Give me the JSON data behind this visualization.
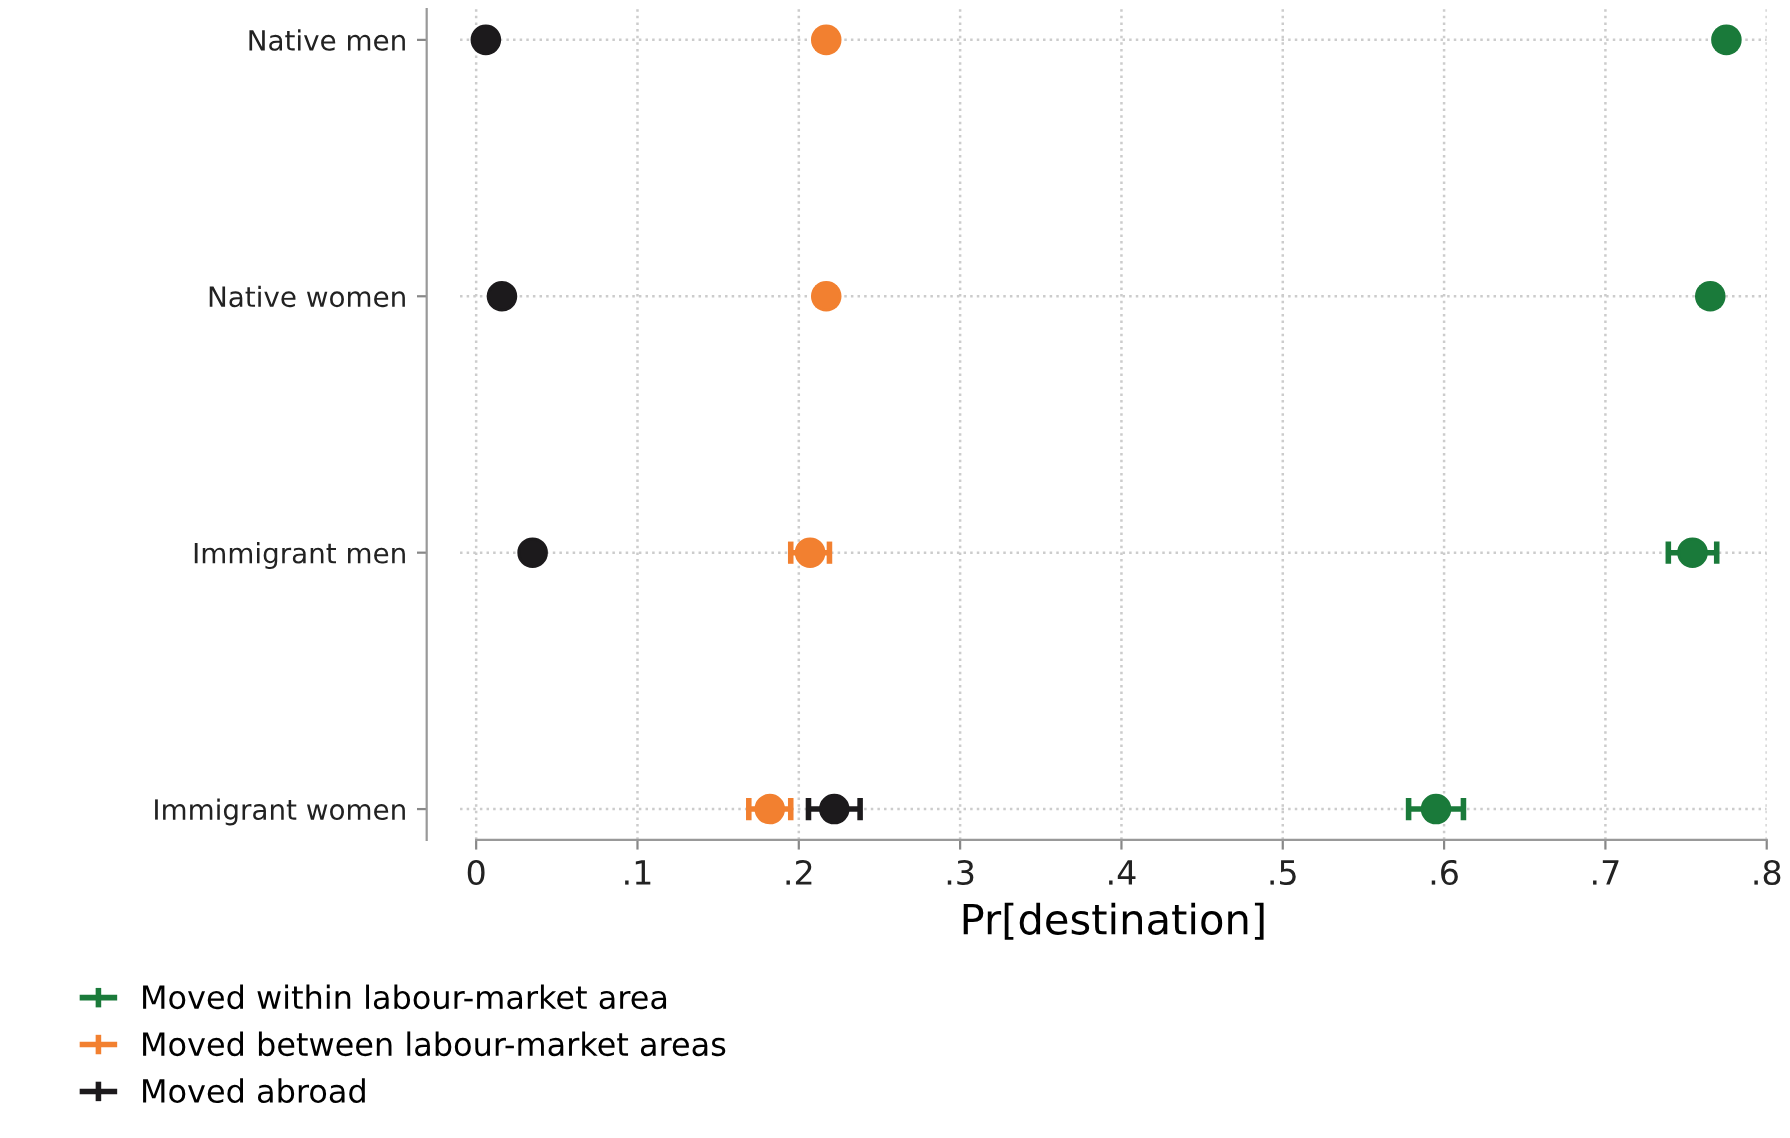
{
  "chart_data": {
    "type": "scatter",
    "orientation": "horizontal",
    "xlabel": "Pr[destination]",
    "categories": [
      "Native men",
      "Native women",
      "Immigrant men",
      "Immigrant women"
    ],
    "series": [
      {
        "name": "Moved within labour-market area",
        "color": "#1a7a3a",
        "values": [
          0.775,
          0.765,
          0.754,
          0.595
        ],
        "errors": [
          0.005,
          0.005,
          0.015,
          0.017
        ]
      },
      {
        "name": "Moved between labour-market areas",
        "color": "#f28030",
        "values": [
          0.217,
          0.217,
          0.207,
          0.182
        ],
        "errors": [
          0.005,
          0.005,
          0.012,
          0.013
        ]
      },
      {
        "name": "Moved abroad",
        "color": "#1c1a1c",
        "values": [
          0.006,
          0.016,
          0.035,
          0.222
        ],
        "errors": [
          0.002,
          0.002,
          0.003,
          0.016
        ]
      }
    ],
    "xlim": [
      -0.01,
      0.8
    ],
    "xticks": [
      0,
      {
        "value": 0.1,
        "label": ".1"
      },
      {
        "value": 0.2,
        "label": ".2"
      },
      {
        "value": 0.3,
        "label": ".3"
      },
      {
        "value": 0.4,
        "label": ".4"
      },
      {
        "value": 0.5,
        "label": ".5"
      },
      {
        "value": 0.6,
        "label": ".6"
      },
      {
        "value": 0.7,
        "label": ".7"
      },
      {
        "value": 0.8,
        "label": ".8"
      }
    ],
    "grid": true,
    "legend": "bottom left",
    "marker": "circle"
  }
}
